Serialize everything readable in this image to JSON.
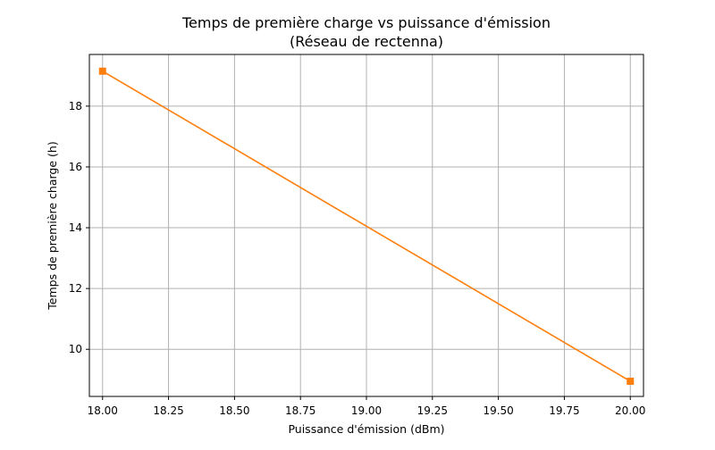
{
  "chart_data": {
    "type": "line",
    "title": "Temps de première charge vs puissance d'émission",
    "subtitle": "(Réseau de rectenna)",
    "xlabel": "Puissance d'émission (dBm)",
    "ylabel": "Temps de première charge (h)",
    "xlim": [
      17.95,
      20.05
    ],
    "ylim": [
      8.45,
      19.7
    ],
    "x_ticks": [
      18.0,
      18.25,
      18.5,
      18.75,
      19.0,
      19.25,
      19.5,
      19.75,
      20.0
    ],
    "x_tick_labels": [
      "18.00",
      "18.25",
      "18.50",
      "18.75",
      "19.00",
      "19.25",
      "19.50",
      "19.75",
      "20.00"
    ],
    "y_ticks": [
      10,
      12,
      14,
      16,
      18
    ],
    "y_tick_labels": [
      "10",
      "12",
      "14",
      "16",
      "18"
    ],
    "grid": true,
    "series": [
      {
        "color": "#ff7f0e",
        "marker": "square",
        "x": [
          18.0,
          20.0
        ],
        "y": [
          19.15,
          8.95
        ]
      }
    ]
  }
}
